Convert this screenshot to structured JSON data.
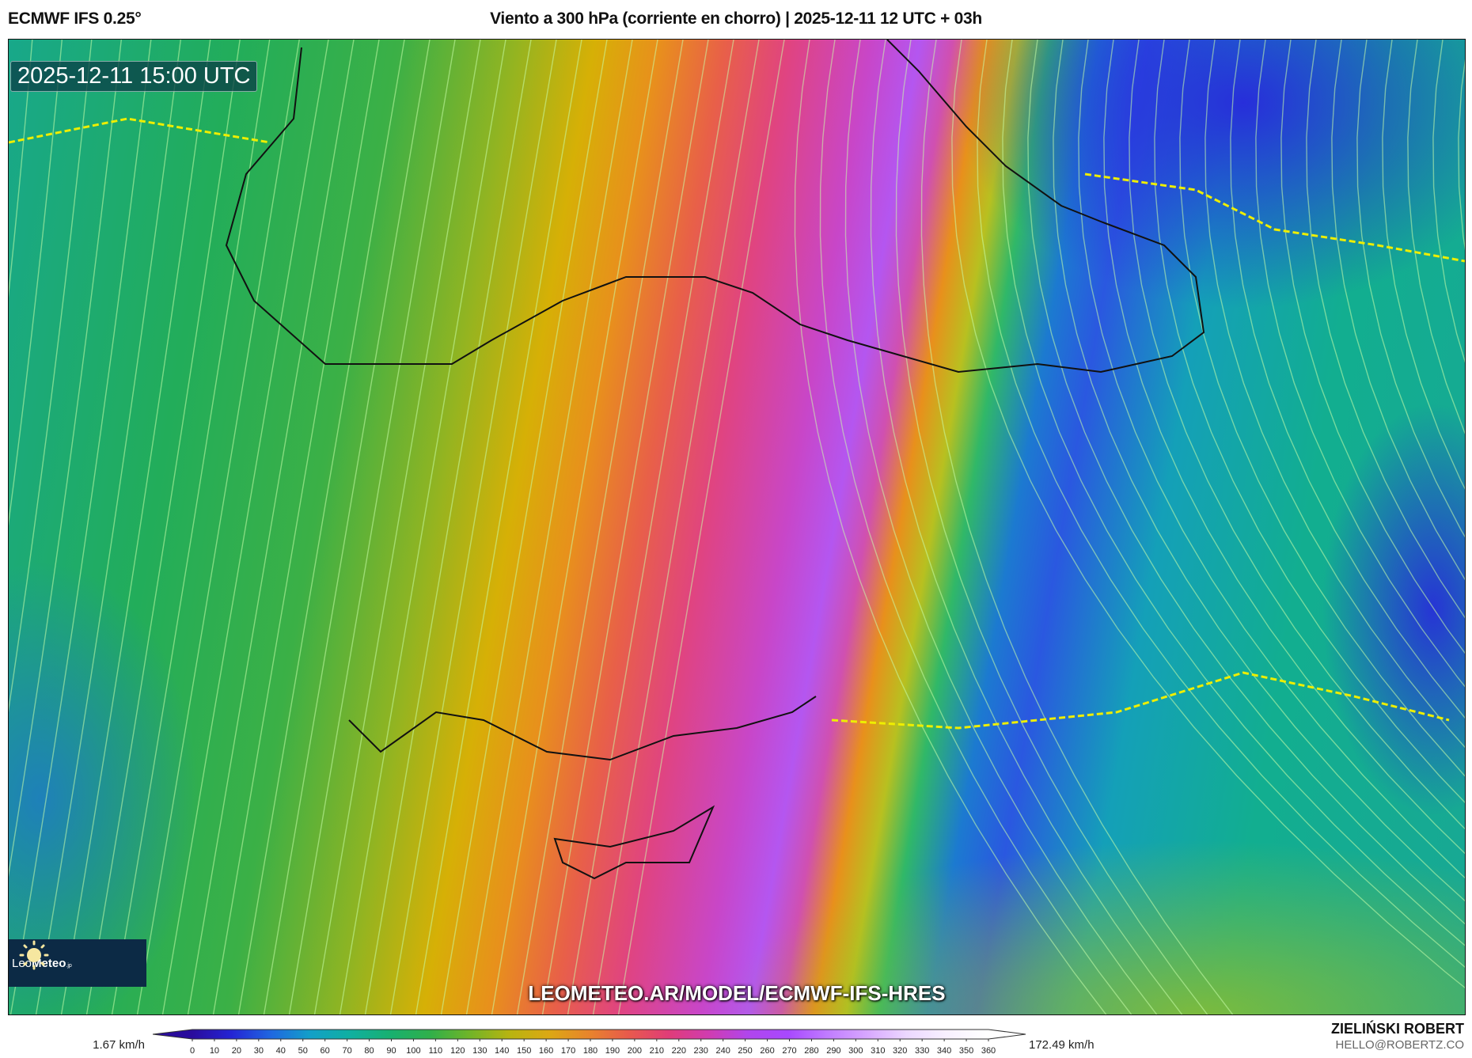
{
  "header": {
    "model": "ECMWF IFS 0.25°",
    "title": "Viento a 300 hPa (corriente en chorro) | 2025-12-11 12 UTC + 03h"
  },
  "map": {
    "valid_time": "2025-12-11 15:00 UTC",
    "watermark_url": "LEOMETEO.AR/MODEL/ECMWF-IFS-HRES",
    "logo": {
      "text_light": "Leo",
      "text_bold": "Meteo",
      "suffix": ".jp"
    }
  },
  "colorbar": {
    "min_label": "1.67 km/h",
    "max_label": "172.49 km/h",
    "ticks": [
      "0",
      "10",
      "20",
      "30",
      "40",
      "50",
      "60",
      "70",
      "80",
      "90",
      "100",
      "110",
      "120",
      "130",
      "140",
      "150",
      "160",
      "170",
      "180",
      "190",
      "200",
      "210",
      "220",
      "230",
      "240",
      "250",
      "260",
      "270",
      "280",
      "290",
      "300",
      "310",
      "320",
      "330",
      "340",
      "350",
      "360"
    ],
    "colors": [
      "#2a0c9c",
      "#2424d4",
      "#2068e0",
      "#12a0c8",
      "#10b0a0",
      "#18b070",
      "#30b04a",
      "#70b428",
      "#b8b410",
      "#dca814",
      "#e8842c",
      "#e85a4c",
      "#e03c78",
      "#d03cb0",
      "#b046ec",
      "#a848ff",
      "#c07cff",
      "#d8a8ff",
      "#ecd8ff",
      "#f8f0ff",
      "#ffffff"
    ]
  },
  "credits": {
    "author": "ZIELIŃSKI ROBERT",
    "email": "HELLO@ROBERTZ.CO"
  }
}
